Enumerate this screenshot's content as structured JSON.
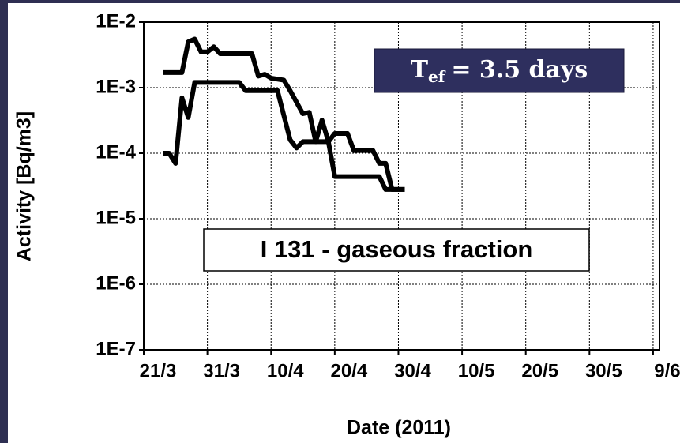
{
  "chart_data": {
    "type": "line",
    "x_label": "Date (2011)",
    "y_label": "Activity [Bq/m3]",
    "log_y": true,
    "grid": true,
    "annotations": [
      {
        "text": "I 131 - gaseous fraction"
      },
      {
        "text": "T",
        "subscript": "ef",
        "rest": "= 3.5 days"
      }
    ],
    "xlim": [
      "2011-03-21",
      "2011-06-10"
    ],
    "xticks": [
      {
        "value": "2011-03-21",
        "label": "21/3"
      },
      {
        "value": "2011-03-31",
        "label": "31/3"
      },
      {
        "value": "2011-04-10",
        "label": "10/4"
      },
      {
        "value": "2011-04-20",
        "label": "20/4"
      },
      {
        "value": "2011-04-30",
        "label": "30/4"
      },
      {
        "value": "2011-05-10",
        "label": "10/5"
      },
      {
        "value": "2011-05-20",
        "label": "20/5"
      },
      {
        "value": "2011-05-30",
        "label": "30/5"
      },
      {
        "value": "2011-06-09",
        "label": "9/6"
      }
    ],
    "ylim": [
      1e-07,
      0.01
    ],
    "yticks": [
      {
        "value": 1e-07,
        "label": "1E-7"
      },
      {
        "value": 1e-06,
        "label": "1E-6"
      },
      {
        "value": 1e-05,
        "label": "1E-5"
      },
      {
        "value": 0.0001,
        "label": "1E-4"
      },
      {
        "value": 0.001,
        "label": "1E-3"
      },
      {
        "value": 0.01,
        "label": "1E-2"
      }
    ],
    "series": [
      {
        "color": "#000000",
        "x": [
          "2011-03-24",
          "2011-03-27",
          "2011-03-28",
          "2011-03-29",
          "2011-03-30",
          "2011-03-31",
          "2011-04-01",
          "2011-04-02",
          "2011-04-07",
          "2011-04-08",
          "2011-04-09",
          "2011-04-10",
          "2011-04-12",
          "2011-04-13",
          "2011-04-15",
          "2011-04-16",
          "2011-04-17",
          "2011-04-18",
          "2011-04-19",
          "2011-04-20",
          "2011-04-27",
          "2011-04-28",
          "2011-05-01"
        ],
        "values": [
          0.0017,
          0.0017,
          0.005,
          0.0055,
          0.0035,
          0.0035,
          0.0042,
          0.0033,
          0.0033,
          0.0015,
          0.0016,
          0.0014,
          0.0013,
          0.0009,
          0.0004,
          0.00042,
          0.00015,
          0.00032,
          0.00015,
          4.4e-05,
          4.4e-05,
          2.8e-05,
          2.8e-05
        ]
      },
      {
        "color": "#000000",
        "x": [
          "2011-03-24",
          "2011-03-25",
          "2011-03-26",
          "2011-03-27",
          "2011-03-28",
          "2011-03-29",
          "2011-04-05",
          "2011-04-06",
          "2011-04-11",
          "2011-04-13",
          "2011-04-14",
          "2011-04-15",
          "2011-04-19",
          "2011-04-20",
          "2011-04-22",
          "2011-04-23",
          "2011-04-26",
          "2011-04-27",
          "2011-04-28",
          "2011-04-29",
          "2011-05-01"
        ],
        "values": [
          0.0001,
          0.0001,
          7e-05,
          0.0007,
          0.00035,
          0.0012,
          0.0012,
          0.0009,
          0.0009,
          0.00016,
          0.00012,
          0.00015,
          0.00015,
          0.0002,
          0.0002,
          0.00011,
          0.00011,
          7e-05,
          7e-05,
          2.8e-05,
          2.8e-05
        ]
      }
    ]
  }
}
